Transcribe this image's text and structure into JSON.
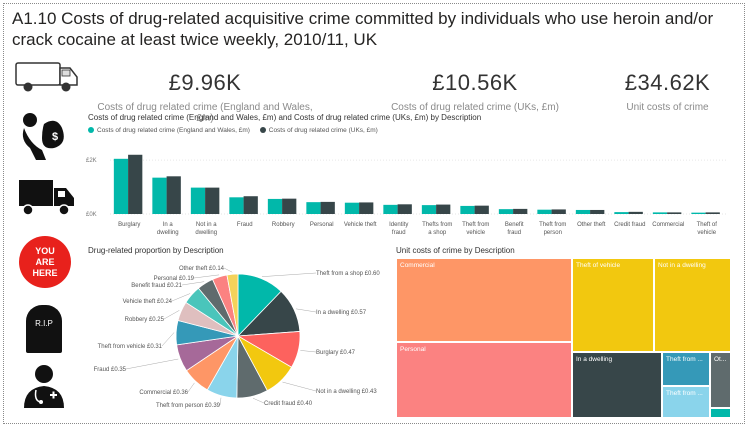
{
  "title": "A1.10 Costs of drug-related acquisitive crime committed by individuals who use heroin and/or crack cocaine at least twice weekly, 2010/11, UK",
  "kpis": [
    {
      "value": "£9.96K",
      "label": "Costs of drug related crime (England and Wales, £m)"
    },
    {
      "value": "£10.56K",
      "label": "Costs of drug related crime (UKs, £m)"
    },
    {
      "value": "£34.62K",
      "label": "Unit costs of crime"
    }
  ],
  "side_icons": {
    "you_are_here": "YOU ARE HERE",
    "rip": "R.I.P"
  },
  "chart_data": [
    {
      "type": "bar",
      "title": "Costs of drug related crime (England and Wales, £m) and Costs of drug related crime (UKs, £m) by Description",
      "categories": [
        "Burglary",
        "In a dwelling",
        "Not in a dwelling",
        "Fraud",
        "Robbery",
        "Personal",
        "Vehicle theft",
        "Identity fraud",
        "Thefts from a shop",
        "Theft from vehicle",
        "Benefit fraud",
        "Theft from person",
        "Other theft",
        "Credit fraud",
        "Commercial",
        "Theft of vehicle"
      ],
      "category_lines": [
        [
          "Burglary"
        ],
        [
          "In a",
          "dwelling"
        ],
        [
          "Not in a",
          "dwelling"
        ],
        [
          "Fraud"
        ],
        [
          "Robbery"
        ],
        [
          "Personal"
        ],
        [
          "Vehicle theft"
        ],
        [
          "Identity",
          "fraud"
        ],
        [
          "Thefts from",
          "a shop"
        ],
        [
          "Theft from",
          "vehicle"
        ],
        [
          "Benefit",
          "fraud"
        ],
        [
          "Theft from",
          "person"
        ],
        [
          "Other theft"
        ],
        [
          "Credit fraud"
        ],
        [
          "Commercial"
        ],
        [
          "Theft of",
          "vehicle"
        ]
      ],
      "series": [
        {
          "name": "Costs of drug related crime (England and Wales, £m)",
          "color": "#01B8AA",
          "values": [
            2.05,
            1.35,
            0.98,
            0.62,
            0.56,
            0.44,
            0.42,
            0.34,
            0.33,
            0.3,
            0.18,
            0.16,
            0.15,
            0.07,
            0.06,
            0.05
          ]
        },
        {
          "name": "Costs of drug related crime (UKs, £m)",
          "color": "#374649",
          "values": [
            2.2,
            1.4,
            0.98,
            0.66,
            0.57,
            0.45,
            0.43,
            0.36,
            0.35,
            0.31,
            0.19,
            0.17,
            0.15,
            0.08,
            0.06,
            0.06
          ]
        }
      ],
      "ylim": [
        0,
        2.6
      ],
      "yticks": [
        {
          "value": 0,
          "label": "£0K"
        },
        {
          "value": 2,
          "label": "£2K"
        }
      ]
    },
    {
      "type": "pie",
      "title": "Drug-related proportion by Description",
      "slices": [
        {
          "label": "Theft from a shop",
          "value": 0.6,
          "display": "Theft from a shop £0.60",
          "color": "#01B8AA"
        },
        {
          "label": "In a dwelling",
          "value": 0.57,
          "display": "In a dwelling £0.57",
          "color": "#374649"
        },
        {
          "label": "Burglary",
          "value": 0.47,
          "display": "Burglary £0.47",
          "color": "#FD625E"
        },
        {
          "label": "Not in a dwelling",
          "value": 0.43,
          "display": "Not in a dwelling £0.43",
          "color": "#F2C80F"
        },
        {
          "label": "Credit fraud",
          "value": 0.4,
          "display": "Credit fraud £0.40",
          "color": "#5F6B6D"
        },
        {
          "label": "Theft from person",
          "value": 0.39,
          "display": "Theft from person £0.39",
          "color": "#8AD4EB"
        },
        {
          "label": "Commercial",
          "value": 0.36,
          "display": "Commercial £0.36",
          "color": "#FE9666"
        },
        {
          "label": "Fraud",
          "value": 0.35,
          "display": "Fraud £0.35",
          "color": "#A66999"
        },
        {
          "label": "Theft from vehicle",
          "value": 0.31,
          "display": "Theft from vehicle £0.31",
          "color": "#3599B8"
        },
        {
          "label": "Robbery",
          "value": 0.25,
          "display": "Robbery £0.25",
          "color": "#DFBFBF"
        },
        {
          "label": "Vehicle theft",
          "value": 0.24,
          "display": "Vehicle theft £0.24",
          "color": "#4AC5BB"
        },
        {
          "label": "Benefit fraud",
          "value": 0.21,
          "display": "Benefit fraud £0.21",
          "color": "#5F6B6D"
        },
        {
          "label": "Personal",
          "value": 0.19,
          "display": "Personal £0.19",
          "color": "#FB8281"
        },
        {
          "label": "Other theft",
          "value": 0.14,
          "display": "Other theft £0.14",
          "color": "#F4D25A"
        }
      ]
    },
    {
      "type": "treemap",
      "title": "Unit costs of crime by Description",
      "cells": [
        {
          "label": "Commercial",
          "color": "#FE9666"
        },
        {
          "label": "Personal",
          "color": "#FB8281"
        },
        {
          "label": "Theft of vehicle",
          "color": "#F2C80F"
        },
        {
          "label": "Not in a dwelling",
          "color": "#F2C80F"
        },
        {
          "label": "In a dwelling",
          "color": "#374649"
        },
        {
          "label": "Theft from ...",
          "color": "#3599B8"
        },
        {
          "label": "Theft from ...",
          "color": "#8AD4EB"
        },
        {
          "label": "Ot...",
          "color": "#5F6B6D"
        },
        {
          "label": "",
          "color": "#01B8AA"
        }
      ]
    }
  ]
}
